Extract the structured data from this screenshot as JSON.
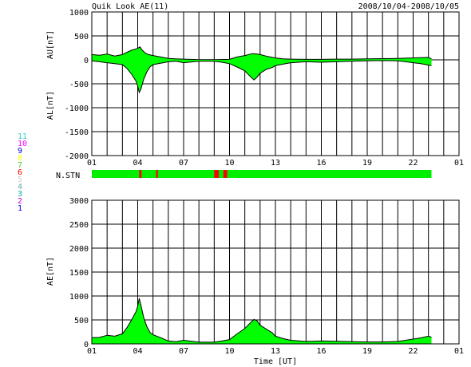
{
  "header": {
    "title": "Quik Look AE(11)",
    "date_range": "2008/10/04-2008/10/05"
  },
  "colors": {
    "fill": "#00ff00",
    "line": "#000000",
    "grid": "#000000",
    "station_bar": "#00ee00",
    "station_gap": "#ff0000"
  },
  "chart_data": [
    {
      "type": "area",
      "panel": "AU/AL",
      "ylabel_upper": "AU[nT]",
      "ylabel_lower": "AL[nT]",
      "ylim": [
        -2000,
        1000
      ],
      "yticks": [
        1000,
        500,
        0,
        -500,
        -1000,
        -1500,
        -2000
      ],
      "xlim": [
        1,
        25
      ],
      "xticks": [
        "01",
        "04",
        "07",
        "10",
        "13",
        "16",
        "19",
        "22",
        "01"
      ],
      "grid": true,
      "series": [
        {
          "x": [
            1,
            1.5,
            2,
            2.5,
            3,
            3.3,
            3.6,
            3.9,
            4.0,
            4.15,
            4.3,
            4.5,
            4.7,
            5,
            5.5,
            6,
            6.5,
            7,
            8,
            9,
            10,
            10.5,
            11,
            11.5,
            11.8,
            12,
            12.5,
            13,
            13.5,
            14,
            15,
            16,
            17,
            18,
            19,
            20,
            21,
            22,
            22.5,
            23,
            23.2
          ],
          "values": [
            110,
            95,
            120,
            80,
            110,
            160,
            200,
            230,
            240,
            270,
            200,
            140,
            110,
            90,
            60,
            30,
            20,
            15,
            5,
            5,
            10,
            60,
            90,
            130,
            120,
            110,
            70,
            40,
            20,
            15,
            10,
            10,
            15,
            15,
            20,
            25,
            30,
            40,
            45,
            50,
            20
          ]
        },
        {
          "x": [
            1,
            1.5,
            2,
            2.5,
            3,
            3.3,
            3.6,
            3.9,
            4.0,
            4.1,
            4.2,
            4.4,
            4.6,
            4.8,
            5,
            5.5,
            6,
            6.5,
            7,
            8,
            9,
            9.5,
            10,
            10.5,
            11,
            11.3,
            11.6,
            11.8,
            12,
            12.4,
            12.8,
            13,
            13.5,
            14,
            15,
            16,
            17,
            18,
            19,
            20,
            21,
            22,
            22.5,
            23,
            23.2
          ],
          "values": [
            -20,
            -40,
            -60,
            -80,
            -100,
            -180,
            -300,
            -450,
            -550,
            -680,
            -620,
            -400,
            -250,
            -150,
            -100,
            -70,
            -40,
            -30,
            -60,
            -30,
            -30,
            -50,
            -80,
            -150,
            -230,
            -330,
            -420,
            -360,
            -280,
            -200,
            -160,
            -120,
            -90,
            -60,
            -40,
            -50,
            -40,
            -30,
            -20,
            -15,
            -20,
            -60,
            -80,
            -110,
            -120
          ]
        }
      ]
    },
    {
      "type": "bar",
      "panel": "station-count",
      "label": "N.STN",
      "xlim": [
        1,
        25
      ],
      "coverage_end": 23.2,
      "dropouts": [
        {
          "x": 4.1,
          "width": 0.15
        },
        {
          "x": 5.2,
          "width": 0.12
        },
        {
          "x": 9.0,
          "width": 0.3
        },
        {
          "x": 9.6,
          "width": 0.25
        }
      ],
      "legend_numbers": [
        {
          "label": "11",
          "color": "#33cccc"
        },
        {
          "label": "10",
          "color": "#ff00ff"
        },
        {
          "label": "9",
          "color": "#0000cc"
        },
        {
          "label": "8",
          "color": "#ffff00"
        },
        {
          "label": "7",
          "color": "#66cc33"
        },
        {
          "label": "6",
          "color": "#ff0000"
        },
        {
          "label": "5",
          "color": "#cccccc"
        },
        {
          "label": "4",
          "color": "#66aaaa"
        },
        {
          "label": "3",
          "color": "#00aaaa"
        },
        {
          "label": "2",
          "color": "#cc00cc"
        },
        {
          "label": "1",
          "color": "#0000ff"
        }
      ]
    },
    {
      "type": "area",
      "panel": "AE",
      "ylabel": "AE[nT]",
      "xlabel": "Time [UT]",
      "ylim": [
        0,
        3000
      ],
      "yticks": [
        3000,
        2500,
        2000,
        1500,
        1000,
        500,
        0
      ],
      "xlim": [
        1,
        25
      ],
      "xticks": [
        "01",
        "04",
        "07",
        "10",
        "13",
        "16",
        "19",
        "22",
        "01"
      ],
      "grid": true,
      "series": [
        {
          "x": [
            1,
            1.5,
            2,
            2.5,
            3,
            3.3,
            3.6,
            3.9,
            4.0,
            4.1,
            4.2,
            4.4,
            4.6,
            4.8,
            5,
            5.5,
            6,
            6.5,
            7,
            8,
            9,
            9.5,
            10,
            10.5,
            11,
            11.3,
            11.6,
            11.8,
            12,
            12.4,
            12.8,
            13,
            13.5,
            14,
            15,
            16,
            17,
            18,
            19,
            20,
            21,
            22,
            22.5,
            23,
            23.2
          ],
          "values": [
            130,
            135,
            180,
            160,
            210,
            340,
            500,
            680,
            790,
            950,
            820,
            540,
            360,
            240,
            190,
            130,
            60,
            45,
            75,
            35,
            35,
            60,
            90,
            210,
            320,
            420,
            510,
            480,
            390,
            310,
            230,
            160,
            110,
            75,
            50,
            60,
            55,
            45,
            40,
            40,
            50,
            100,
            125,
            160,
            140
          ]
        }
      ]
    }
  ]
}
